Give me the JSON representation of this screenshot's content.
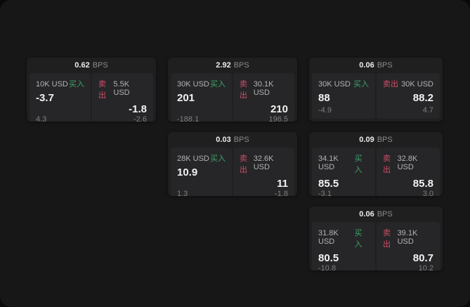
{
  "labels": {
    "bps": "BPS",
    "buy": "买入",
    "sell": "卖出"
  },
  "colors": {
    "buy_green": "#3da368",
    "sell_red": "#cf4d68",
    "panel_bg": "#171718",
    "card_bg": "#1f1f20",
    "subpanel_bg": "#262628"
  },
  "cards": [
    {
      "bps_value": "0.62",
      "buy": {
        "amount": "10K USD",
        "price": "-3.7",
        "delta": "4.3"
      },
      "sell": {
        "amount": "5.5K USD",
        "price": "-1.8",
        "delta": "-2.6"
      }
    },
    {
      "bps_value": "2.92",
      "buy": {
        "amount": "30K USD",
        "price": "201",
        "delta": "-188.1"
      },
      "sell": {
        "amount": "30.1K USD",
        "price": "210",
        "delta": "196.5"
      }
    },
    {
      "bps_value": "0.06",
      "buy": {
        "amount": "30K USD",
        "price": "88",
        "delta": "-4.9"
      },
      "sell": {
        "amount": "30K USD",
        "price": "88.2",
        "delta": "4.7"
      }
    },
    {
      "bps_value": "0.03",
      "buy": {
        "amount": "28K USD",
        "price": "10.9",
        "delta": "1.3"
      },
      "sell": {
        "amount": "32.6K USD",
        "price": "11",
        "delta": "-1.8"
      }
    },
    {
      "bps_value": "0.09",
      "buy": {
        "amount": "34.1K USD",
        "price": "85.5",
        "delta": "-3.1"
      },
      "sell": {
        "amount": "32.8K USD",
        "price": "85.8",
        "delta": "3.0"
      }
    },
    {
      "bps_value": "0.06",
      "buy": {
        "amount": "31.8K USD",
        "price": "80.5",
        "delta": "-10.8"
      },
      "sell": {
        "amount": "39.1K USD",
        "price": "80.7",
        "delta": "10.2"
      }
    }
  ]
}
